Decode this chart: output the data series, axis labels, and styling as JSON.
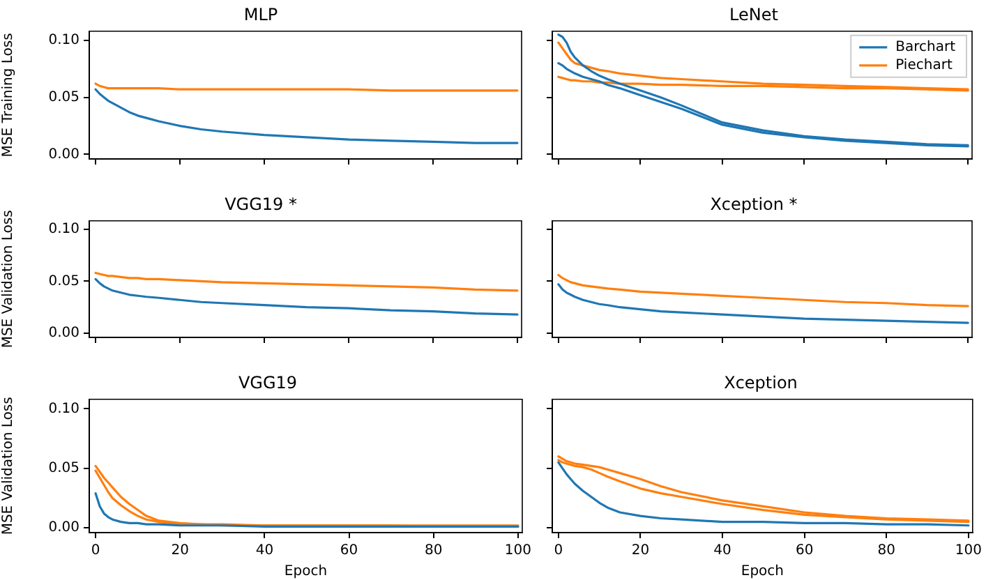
{
  "chart_data": [
    {
      "type": "line",
      "title": "MLP",
      "ylabel": "MSE Training Loss",
      "x": [
        0,
        1,
        2,
        3,
        4,
        6,
        8,
        10,
        12,
        15,
        20,
        25,
        30,
        40,
        50,
        60,
        70,
        80,
        90,
        100
      ],
      "xlim": [
        -1.5,
        101
      ],
      "xticks": [
        {
          "value": 0,
          "label": null
        },
        {
          "value": 20,
          "label": null
        },
        {
          "value": 40,
          "label": null
        },
        {
          "value": 60,
          "label": null
        },
        {
          "value": 80,
          "label": null
        },
        {
          "value": 100,
          "label": null
        }
      ],
      "ylim": [
        -0.004,
        0.108
      ],
      "yticks": [
        {
          "value": 0,
          "label": "0.00"
        },
        {
          "value": 0.05,
          "label": "0.05"
        },
        {
          "value": 0.1,
          "label": "0.10"
        }
      ],
      "tick_labels": "y",
      "grid": false,
      "legend": false,
      "marker": "none",
      "line_style": "solid",
      "series": [
        {
          "color": "#1f77b4",
          "values": [
            0.057,
            0.053,
            0.05,
            0.047,
            0.045,
            0.041,
            0.037,
            0.034,
            0.032,
            0.029,
            0.025,
            0.022,
            0.02,
            0.017,
            0.015,
            0.013,
            0.012,
            0.011,
            0.01,
            0.01
          ]
        },
        {
          "color": "#ff7f0e",
          "values": [
            0.062,
            0.06,
            0.059,
            0.058,
            0.058,
            0.058,
            0.058,
            0.058,
            0.058,
            0.058,
            0.057,
            0.057,
            0.057,
            0.057,
            0.057,
            0.057,
            0.056,
            0.056,
            0.056,
            0.056
          ]
        }
      ]
    },
    {
      "type": "line",
      "title": "LeNet",
      "x": [
        0,
        1,
        2,
        3,
        4,
        6,
        8,
        10,
        12,
        15,
        20,
        25,
        30,
        40,
        50,
        60,
        70,
        80,
        90,
        100
      ],
      "xlim": [
        -1.5,
        101
      ],
      "xticks": [
        {
          "value": 0,
          "label": null
        },
        {
          "value": 20,
          "label": null
        },
        {
          "value": 40,
          "label": null
        },
        {
          "value": 60,
          "label": null
        },
        {
          "value": 80,
          "label": null
        },
        {
          "value": 100,
          "label": null
        }
      ],
      "ylim": [
        -0.004,
        0.108
      ],
      "yticks": [
        {
          "value": 0,
          "label": null
        },
        {
          "value": 0.05,
          "label": null
        },
        {
          "value": 0.1,
          "label": null
        }
      ],
      "tick_labels": false,
      "grid": false,
      "legend": "top right",
      "marker": "none",
      "line_style": "solid",
      "series": [
        {
          "name": "Barchart",
          "color": "#1f77b4",
          "values": [
            0.105,
            0.103,
            0.098,
            0.09,
            0.085,
            0.078,
            0.073,
            0.069,
            0.066,
            0.062,
            0.056,
            0.05,
            0.043,
            0.028,
            0.021,
            0.016,
            0.013,
            0.011,
            0.009,
            0.008
          ]
        },
        {
          "color": "#1f77b4",
          "values": [
            0.08,
            0.078,
            0.075,
            0.073,
            0.071,
            0.068,
            0.066,
            0.064,
            0.061,
            0.058,
            0.052,
            0.046,
            0.04,
            0.026,
            0.019,
            0.015,
            0.012,
            0.01,
            0.008,
            0.007
          ]
        },
        {
          "name": "Piechart",
          "color": "#ff7f0e",
          "values": [
            0.098,
            0.093,
            0.088,
            0.083,
            0.08,
            0.078,
            0.076,
            0.074,
            0.073,
            0.071,
            0.069,
            0.067,
            0.066,
            0.064,
            0.062,
            0.061,
            0.06,
            0.059,
            0.058,
            0.057
          ]
        },
        {
          "color": "#ff7f0e",
          "values": [
            0.068,
            0.067,
            0.066,
            0.065,
            0.065,
            0.064,
            0.064,
            0.063,
            0.063,
            0.062,
            0.062,
            0.061,
            0.061,
            0.06,
            0.06,
            0.059,
            0.058,
            0.058,
            0.057,
            0.056
          ]
        }
      ]
    },
    {
      "type": "line",
      "title": "VGG19 *",
      "ylabel": "MSE Validation Loss",
      "x": [
        0,
        1,
        2,
        3,
        4,
        6,
        8,
        10,
        12,
        15,
        20,
        25,
        30,
        40,
        50,
        60,
        70,
        80,
        90,
        100
      ],
      "xlim": [
        -1.5,
        101
      ],
      "xticks": [
        {
          "value": 0,
          "label": null
        },
        {
          "value": 20,
          "label": null
        },
        {
          "value": 40,
          "label": null
        },
        {
          "value": 60,
          "label": null
        },
        {
          "value": 80,
          "label": null
        },
        {
          "value": 100,
          "label": null
        }
      ],
      "ylim": [
        -0.004,
        0.108
      ],
      "yticks": [
        {
          "value": 0,
          "label": "0.00"
        },
        {
          "value": 0.05,
          "label": "0.05"
        },
        {
          "value": 0.1,
          "label": "0.10"
        }
      ],
      "tick_labels": "y",
      "grid": false,
      "legend": false,
      "marker": "none",
      "line_style": "solid",
      "series": [
        {
          "color": "#1f77b4",
          "values": [
            0.052,
            0.048,
            0.045,
            0.043,
            0.041,
            0.039,
            0.037,
            0.036,
            0.035,
            0.034,
            0.032,
            0.03,
            0.029,
            0.027,
            0.025,
            0.024,
            0.022,
            0.021,
            0.019,
            0.018
          ]
        },
        {
          "color": "#ff7f0e",
          "values": [
            0.058,
            0.057,
            0.056,
            0.055,
            0.055,
            0.054,
            0.053,
            0.053,
            0.052,
            0.052,
            0.051,
            0.05,
            0.049,
            0.048,
            0.047,
            0.046,
            0.045,
            0.044,
            0.042,
            0.041
          ]
        }
      ]
    },
    {
      "type": "line",
      "title": "Xception *",
      "x": [
        0,
        1,
        2,
        3,
        4,
        6,
        8,
        10,
        12,
        15,
        20,
        25,
        30,
        40,
        50,
        60,
        70,
        80,
        90,
        100
      ],
      "xlim": [
        -1.5,
        101
      ],
      "xticks": [
        {
          "value": 0,
          "label": null
        },
        {
          "value": 20,
          "label": null
        },
        {
          "value": 40,
          "label": null
        },
        {
          "value": 60,
          "label": null
        },
        {
          "value": 80,
          "label": null
        },
        {
          "value": 100,
          "label": null
        }
      ],
      "ylim": [
        -0.004,
        0.108
      ],
      "yticks": [
        {
          "value": 0,
          "label": null
        },
        {
          "value": 0.05,
          "label": null
        },
        {
          "value": 0.1,
          "label": null
        }
      ],
      "tick_labels": false,
      "grid": false,
      "legend": false,
      "marker": "none",
      "line_style": "solid",
      "series": [
        {
          "color": "#1f77b4",
          "values": [
            0.047,
            0.042,
            0.039,
            0.037,
            0.035,
            0.032,
            0.03,
            0.028,
            0.027,
            0.025,
            0.023,
            0.021,
            0.02,
            0.018,
            0.016,
            0.014,
            0.013,
            0.012,
            0.011,
            0.01
          ]
        },
        {
          "color": "#ff7f0e",
          "values": [
            0.056,
            0.053,
            0.051,
            0.049,
            0.048,
            0.046,
            0.045,
            0.044,
            0.043,
            0.042,
            0.04,
            0.039,
            0.038,
            0.036,
            0.034,
            0.032,
            0.03,
            0.029,
            0.027,
            0.026
          ]
        }
      ]
    },
    {
      "type": "line",
      "title": "VGG19",
      "xlabel": "Epoch",
      "ylabel": "MSE Validation Loss",
      "x": [
        0,
        1,
        2,
        3,
        4,
        6,
        8,
        10,
        12,
        15,
        20,
        25,
        30,
        40,
        50,
        60,
        70,
        80,
        90,
        100
      ],
      "xlim": [
        -1.5,
        101
      ],
      "xticks": [
        0,
        20,
        40,
        60,
        80,
        100
      ],
      "ylim": [
        -0.004,
        0.108
      ],
      "yticks": [
        {
          "value": 0,
          "label": "0.00"
        },
        {
          "value": 0.05,
          "label": "0.05"
        },
        {
          "value": 0.1,
          "label": "0.10"
        }
      ],
      "grid": false,
      "legend": false,
      "marker": "none",
      "line_style": "solid",
      "series": [
        {
          "color": "#1f77b4",
          "values": [
            0.029,
            0.018,
            0.012,
            0.009,
            0.007,
            0.005,
            0.004,
            0.004,
            0.003,
            0.003,
            0.002,
            0.002,
            0.002,
            0.001,
            0.001,
            0.001,
            0.001,
            0.001,
            0.001,
            0.001
          ]
        },
        {
          "color": "#ff7f0e",
          "values": [
            0.052,
            0.047,
            0.042,
            0.038,
            0.034,
            0.026,
            0.02,
            0.015,
            0.01,
            0.006,
            0.004,
            0.003,
            0.003,
            0.002,
            0.002,
            0.002,
            0.002,
            0.002,
            0.002,
            0.002
          ]
        },
        {
          "color": "#ff7f0e",
          "values": [
            0.048,
            0.042,
            0.036,
            0.03,
            0.025,
            0.019,
            0.014,
            0.01,
            0.007,
            0.005,
            0.003,
            0.003,
            0.002,
            0.002,
            0.002,
            0.002,
            0.002,
            0.001,
            0.001,
            0.001
          ]
        }
      ]
    },
    {
      "type": "line",
      "title": "Xception",
      "xlabel": "Epoch",
      "x": [
        0,
        1,
        2,
        3,
        4,
        6,
        8,
        10,
        12,
        15,
        20,
        25,
        30,
        40,
        50,
        60,
        70,
        80,
        90,
        100
      ],
      "xlim": [
        -1.5,
        101
      ],
      "xticks": [
        0,
        20,
        40,
        60,
        80,
        100
      ],
      "ylim": [
        -0.004,
        0.108
      ],
      "yticks": [
        {
          "value": 0,
          "label": null
        },
        {
          "value": 0.05,
          "label": null
        },
        {
          "value": 0.1,
          "label": null
        }
      ],
      "tick_labels": "x",
      "grid": false,
      "legend": false,
      "marker": "none",
      "line_style": "solid",
      "series": [
        {
          "color": "#1f77b4",
          "values": [
            0.055,
            0.05,
            0.045,
            0.041,
            0.037,
            0.031,
            0.026,
            0.021,
            0.017,
            0.013,
            0.01,
            0.008,
            0.007,
            0.005,
            0.005,
            0.004,
            0.004,
            0.003,
            0.003,
            0.002
          ]
        },
        {
          "color": "#ff7f0e",
          "values": [
            0.06,
            0.058,
            0.056,
            0.055,
            0.054,
            0.053,
            0.052,
            0.051,
            0.049,
            0.046,
            0.041,
            0.035,
            0.03,
            0.023,
            0.018,
            0.013,
            0.01,
            0.008,
            0.007,
            0.006
          ]
        },
        {
          "color": "#ff7f0e",
          "values": [
            0.057,
            0.055,
            0.054,
            0.053,
            0.052,
            0.051,
            0.049,
            0.046,
            0.043,
            0.039,
            0.033,
            0.029,
            0.026,
            0.02,
            0.015,
            0.011,
            0.009,
            0.007,
            0.006,
            0.005
          ]
        }
      ]
    }
  ]
}
